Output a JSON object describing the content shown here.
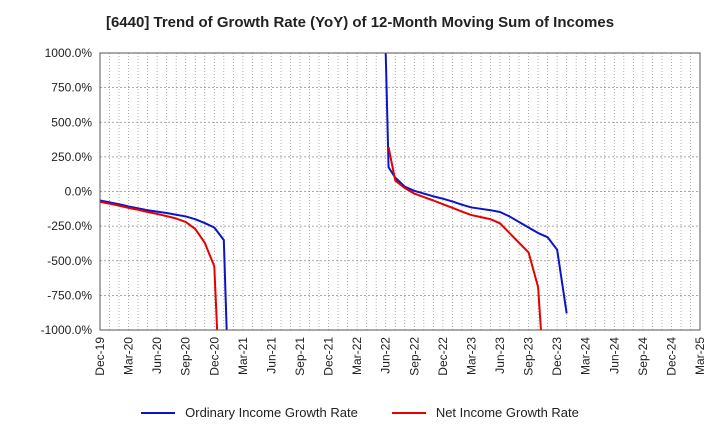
{
  "chart_data": {
    "type": "line",
    "title": "[6440]  Trend of Growth Rate (YoY) of 12-Month Moving Sum of Incomes",
    "xlabel": "",
    "ylabel": "",
    "ylim": [
      -1000,
      1000
    ],
    "ytick_values": [
      1000,
      750,
      500,
      250,
      0,
      -250,
      -500,
      -750,
      -1000
    ],
    "ytick_labels": [
      "1000.0%",
      "750.0%",
      "500.0%",
      "250.0%",
      "0.0%",
      "-250.0%",
      "-500.0%",
      "-750.0%",
      "-1000.0%"
    ],
    "xtick_labels": [
      "Dec-19",
      "Mar-20",
      "Jun-20",
      "Sep-20",
      "Dec-20",
      "Mar-21",
      "Jun-21",
      "Sep-21",
      "Dec-21",
      "Mar-22",
      "Jun-22",
      "Sep-22",
      "Dec-22",
      "Mar-23",
      "Jun-23",
      "Sep-23",
      "Dec-23",
      "Mar-24",
      "Jun-24",
      "Sep-24",
      "Dec-24",
      "Mar-25"
    ],
    "x_unit": "month index (0 = Dec-19)",
    "grid": true,
    "legend_position": "bottom",
    "series": [
      {
        "name": "Ordinary Income Growth Rate",
        "color": "#0a14c8",
        "points": [
          [
            0,
            -65
          ],
          [
            1,
            -78
          ],
          [
            2,
            -92
          ],
          [
            3,
            -108
          ],
          [
            4,
            -122
          ],
          [
            5,
            -135
          ],
          [
            6,
            -145
          ],
          [
            7,
            -155
          ],
          [
            8,
            -168
          ],
          [
            9,
            -180
          ],
          [
            10,
            -200
          ],
          [
            11,
            -228
          ],
          [
            12,
            -260
          ],
          [
            13,
            -350
          ],
          [
            13.3,
            -1000
          ],
          null,
          [
            30,
            1000
          ],
          [
            30.3,
            175
          ],
          [
            31,
            100
          ],
          [
            32,
            35
          ],
          [
            33,
            5
          ],
          [
            34,
            -15
          ],
          [
            35,
            -35
          ],
          [
            36,
            -52
          ],
          [
            37,
            -72
          ],
          [
            38,
            -95
          ],
          [
            39,
            -115
          ],
          [
            40,
            -125
          ],
          [
            41,
            -135
          ],
          [
            42,
            -148
          ],
          [
            43,
            -180
          ],
          [
            44,
            -220
          ],
          [
            45,
            -260
          ],
          [
            46,
            -300
          ],
          [
            47,
            -330
          ],
          [
            48,
            -420
          ],
          [
            49,
            -880
          ]
        ]
      },
      {
        "name": "Net Income Growth Rate",
        "color": "#e60000",
        "points": [
          [
            0,
            -75
          ],
          [
            1,
            -88
          ],
          [
            2,
            -102
          ],
          [
            3,
            -118
          ],
          [
            4,
            -132
          ],
          [
            5,
            -148
          ],
          [
            6,
            -162
          ],
          [
            7,
            -178
          ],
          [
            8,
            -195
          ],
          [
            9,
            -220
          ],
          [
            10,
            -270
          ],
          [
            11,
            -370
          ],
          [
            12,
            -540
          ],
          [
            12.3,
            -1000
          ],
          null,
          [
            30.3,
            320
          ],
          [
            31,
            80
          ],
          [
            32,
            25
          ],
          [
            33,
            -15
          ],
          [
            34,
            -40
          ],
          [
            35,
            -65
          ],
          [
            36,
            -92
          ],
          [
            37,
            -118
          ],
          [
            38,
            -145
          ],
          [
            39,
            -170
          ],
          [
            40,
            -185
          ],
          [
            41,
            -200
          ],
          [
            42,
            -230
          ],
          [
            43,
            -300
          ],
          [
            44,
            -370
          ],
          [
            45,
            -440
          ],
          [
            46,
            -690
          ],
          [
            46.3,
            -1000
          ]
        ]
      }
    ]
  }
}
